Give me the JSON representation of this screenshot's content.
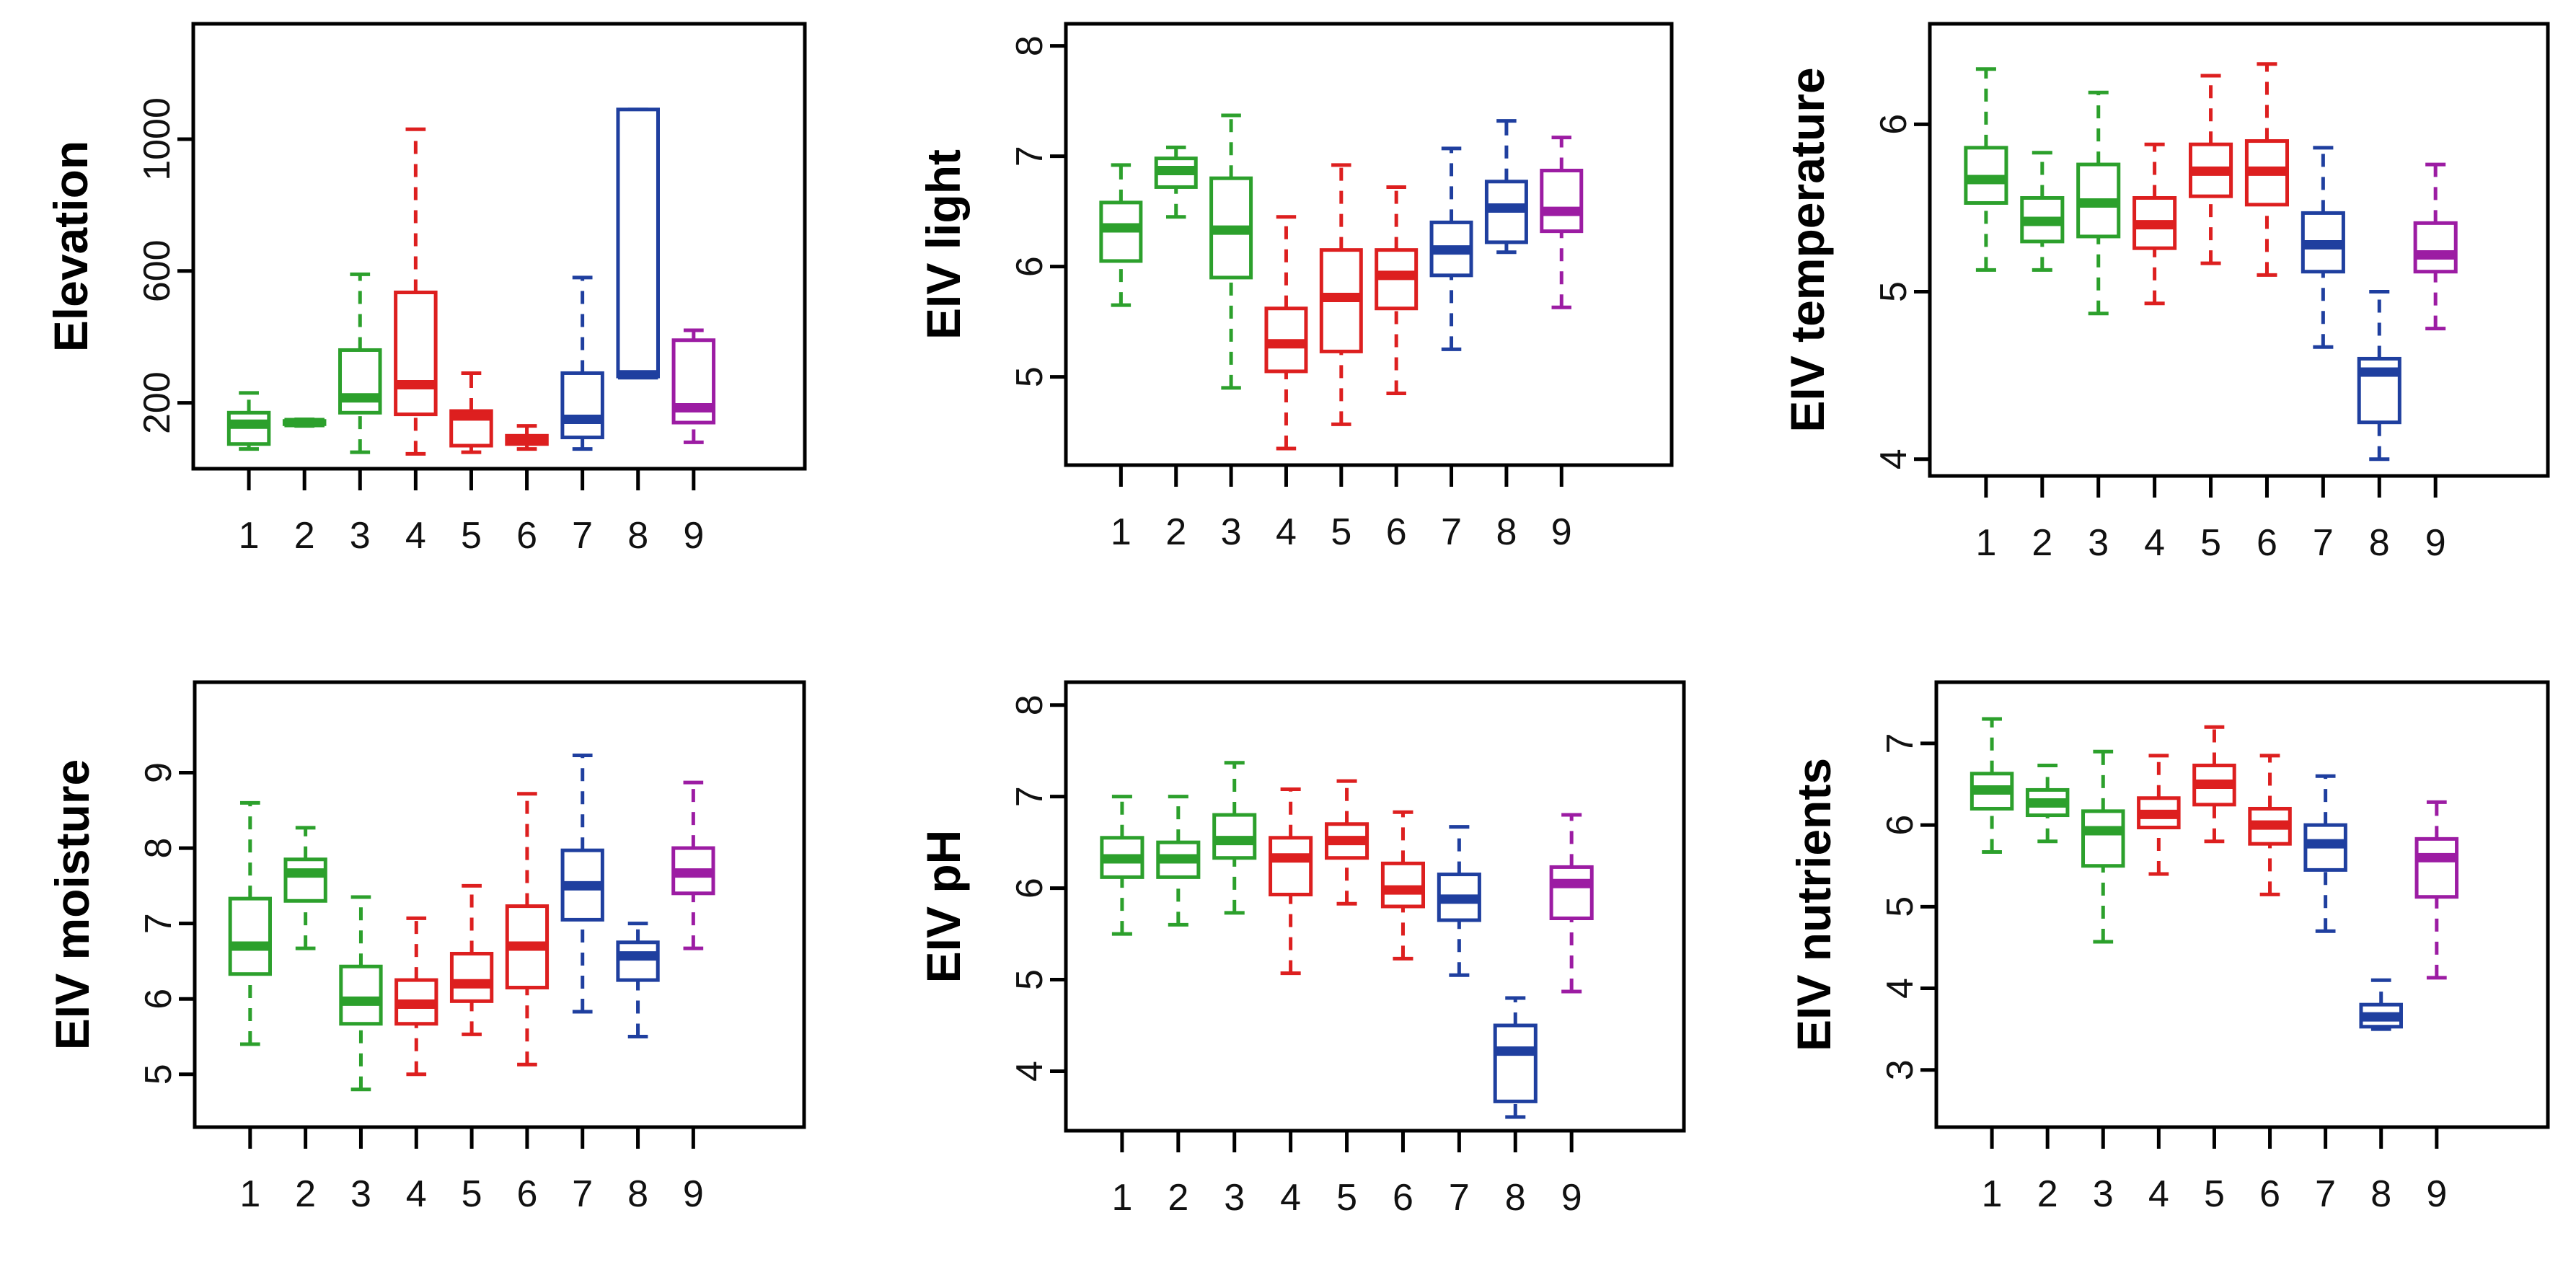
{
  "colors": {
    "green": "#2ca02c",
    "red": "#dd1f1f",
    "blue": "#1f3f9f",
    "purple": "#9c1ca3"
  },
  "group_colors": [
    "green",
    "green",
    "green",
    "red",
    "red",
    "red",
    "blue",
    "blue",
    "purple"
  ],
  "chart_data": [
    {
      "type": "box",
      "title": "",
      "ylabel": "Elevation",
      "xlabel": "",
      "categories": [
        "1",
        "2",
        "3",
        "4",
        "5",
        "6",
        "7",
        "8",
        "9"
      ],
      "ylim": [
        0,
        1350
      ],
      "yticks": [
        200,
        600,
        1000
      ],
      "ytick_labels": [
        "200",
        "600",
        "1000"
      ],
      "boxes": [
        {
          "min": 60,
          "q1": 75,
          "median": 135,
          "q3": 170,
          "max": 230
        },
        {
          "min": 130,
          "q1": 135,
          "median": 140,
          "q3": 145,
          "max": 150
        },
        {
          "min": 50,
          "q1": 170,
          "median": 215,
          "q3": 360,
          "max": 590
        },
        {
          "min": 45,
          "q1": 165,
          "median": 255,
          "q3": 535,
          "max": 1030
        },
        {
          "min": 50,
          "q1": 70,
          "median": 160,
          "q3": 175,
          "max": 290
        },
        {
          "min": 60,
          "q1": 75,
          "median": 90,
          "q3": 100,
          "max": 130
        },
        {
          "min": 60,
          "q1": 95,
          "median": 150,
          "q3": 290,
          "max": 580
        },
        {
          "min": 280,
          "q1": 280,
          "median": 285,
          "q3": 1090,
          "max": 1090
        },
        {
          "min": 80,
          "q1": 140,
          "median": 185,
          "q3": 390,
          "max": 420
        }
      ]
    },
    {
      "type": "box",
      "title": "",
      "ylabel": "EIV light",
      "xlabel": "",
      "categories": [
        "1",
        "2",
        "3",
        "4",
        "5",
        "6",
        "7",
        "8",
        "9"
      ],
      "ylim": [
        4.2,
        8.2
      ],
      "yticks": [
        5,
        6,
        7,
        8
      ],
      "ytick_labels": [
        "5",
        "6",
        "7",
        "8"
      ],
      "boxes": [
        {
          "min": 5.65,
          "q1": 6.05,
          "median": 6.35,
          "q3": 6.58,
          "max": 6.92
        },
        {
          "min": 6.45,
          "q1": 6.72,
          "median": 6.87,
          "q3": 6.98,
          "max": 7.08
        },
        {
          "min": 4.9,
          "q1": 5.9,
          "median": 6.33,
          "q3": 6.8,
          "max": 7.37
        },
        {
          "min": 4.35,
          "q1": 5.05,
          "median": 5.3,
          "q3": 5.62,
          "max": 6.45
        },
        {
          "min": 4.57,
          "q1": 5.23,
          "median": 5.72,
          "q3": 6.15,
          "max": 6.92
        },
        {
          "min": 4.85,
          "q1": 5.62,
          "median": 5.92,
          "q3": 6.15,
          "max": 6.72
        },
        {
          "min": 5.25,
          "q1": 5.92,
          "median": 6.15,
          "q3": 6.4,
          "max": 7.07
        },
        {
          "min": 6.13,
          "q1": 6.22,
          "median": 6.53,
          "q3": 6.77,
          "max": 7.32
        },
        {
          "min": 5.63,
          "q1": 6.32,
          "median": 6.5,
          "q3": 6.87,
          "max": 7.17
        }
      ]
    },
    {
      "type": "box",
      "title": "",
      "ylabel": "EIV temperature",
      "xlabel": "",
      "categories": [
        "1",
        "2",
        "3",
        "4",
        "5",
        "6",
        "7",
        "8",
        "9"
      ],
      "ylim": [
        3.9,
        6.6
      ],
      "yticks": [
        4,
        5,
        6
      ],
      "ytick_labels": [
        "4",
        "5",
        "6"
      ],
      "boxes": [
        {
          "min": 5.13,
          "q1": 5.53,
          "median": 5.67,
          "q3": 5.86,
          "max": 6.33
        },
        {
          "min": 5.13,
          "q1": 5.3,
          "median": 5.42,
          "q3": 5.56,
          "max": 5.83
        },
        {
          "min": 4.87,
          "q1": 5.33,
          "median": 5.53,
          "q3": 5.76,
          "max": 6.19
        },
        {
          "min": 4.93,
          "q1": 5.26,
          "median": 5.4,
          "q3": 5.56,
          "max": 5.88
        },
        {
          "min": 5.17,
          "q1": 5.57,
          "median": 5.72,
          "q3": 5.88,
          "max": 6.29
        },
        {
          "min": 5.1,
          "q1": 5.52,
          "median": 5.72,
          "q3": 5.9,
          "max": 6.36
        },
        {
          "min": 4.67,
          "q1": 5.12,
          "median": 5.28,
          "q3": 5.47,
          "max": 5.86
        },
        {
          "min": 4.0,
          "q1": 4.22,
          "median": 4.52,
          "q3": 4.6,
          "max": 5.0
        },
        {
          "min": 4.78,
          "q1": 5.12,
          "median": 5.22,
          "q3": 5.41,
          "max": 5.76
        }
      ]
    },
    {
      "type": "box",
      "title": "",
      "ylabel": "EIV moisture",
      "xlabel": "",
      "categories": [
        "1",
        "2",
        "3",
        "4",
        "5",
        "6",
        "7",
        "8",
        "9"
      ],
      "ylim": [
        4.3,
        10.2
      ],
      "yticks": [
        5,
        6,
        7,
        8,
        9
      ],
      "ytick_labels": [
        "5",
        "6",
        "7",
        "8",
        "9"
      ],
      "boxes": [
        {
          "min": 5.4,
          "q1": 6.33,
          "median": 6.7,
          "q3": 7.33,
          "max": 8.6
        },
        {
          "min": 6.67,
          "q1": 7.3,
          "median": 7.67,
          "q3": 7.85,
          "max": 8.27
        },
        {
          "min": 4.8,
          "q1": 5.67,
          "median": 5.97,
          "q3": 6.43,
          "max": 7.35
        },
        {
          "min": 5.0,
          "q1": 5.67,
          "median": 5.93,
          "q3": 6.25,
          "max": 7.07
        },
        {
          "min": 5.53,
          "q1": 5.97,
          "median": 6.2,
          "q3": 6.6,
          "max": 7.5
        },
        {
          "min": 5.13,
          "q1": 6.15,
          "median": 6.7,
          "q3": 7.23,
          "max": 8.72
        },
        {
          "min": 5.83,
          "q1": 7.05,
          "median": 7.5,
          "q3": 7.97,
          "max": 9.23
        },
        {
          "min": 5.5,
          "q1": 6.25,
          "median": 6.57,
          "q3": 6.75,
          "max": 7.0
        },
        {
          "min": 6.67,
          "q1": 7.4,
          "median": 7.67,
          "q3": 8.0,
          "max": 8.87
        }
      ]
    },
    {
      "type": "box",
      "title": "",
      "ylabel": "EIV pH",
      "xlabel": "",
      "categories": [
        "1",
        "2",
        "3",
        "4",
        "5",
        "6",
        "7",
        "8",
        "9"
      ],
      "ylim": [
        3.35,
        8.25
      ],
      "yticks": [
        4,
        5,
        6,
        7,
        8
      ],
      "ytick_labels": [
        "4",
        "5",
        "6",
        "7",
        "8"
      ],
      "boxes": [
        {
          "min": 5.5,
          "q1": 6.12,
          "median": 6.32,
          "q3": 6.55,
          "max": 7.0
        },
        {
          "min": 5.6,
          "q1": 6.12,
          "median": 6.32,
          "q3": 6.5,
          "max": 7.0
        },
        {
          "min": 5.73,
          "q1": 6.33,
          "median": 6.52,
          "q3": 6.8,
          "max": 7.37
        },
        {
          "min": 5.07,
          "q1": 5.93,
          "median": 6.33,
          "q3": 6.55,
          "max": 7.08
        },
        {
          "min": 5.83,
          "q1": 6.33,
          "median": 6.52,
          "q3": 6.7,
          "max": 7.17
        },
        {
          "min": 5.23,
          "q1": 5.8,
          "median": 5.98,
          "q3": 6.27,
          "max": 6.83
        },
        {
          "min": 5.05,
          "q1": 5.65,
          "median": 5.88,
          "q3": 6.15,
          "max": 6.67
        },
        {
          "min": 3.5,
          "q1": 3.67,
          "median": 4.22,
          "q3": 4.5,
          "max": 4.8
        },
        {
          "min": 4.87,
          "q1": 5.67,
          "median": 6.05,
          "q3": 6.23,
          "max": 6.8
        }
      ]
    },
    {
      "type": "box",
      "title": "",
      "ylabel": "EIV nutrients",
      "xlabel": "",
      "categories": [
        "1",
        "2",
        "3",
        "4",
        "5",
        "6",
        "7",
        "8",
        "9"
      ],
      "ylim": [
        2.3,
        7.75
      ],
      "yticks": [
        3,
        4,
        5,
        6,
        7
      ],
      "ytick_labels": [
        "3",
        "4",
        "5",
        "6",
        "7"
      ],
      "boxes": [
        {
          "min": 5.67,
          "q1": 6.2,
          "median": 6.43,
          "q3": 6.63,
          "max": 7.3
        },
        {
          "min": 5.8,
          "q1": 6.12,
          "median": 6.27,
          "q3": 6.43,
          "max": 6.73
        },
        {
          "min": 4.57,
          "q1": 5.5,
          "median": 5.93,
          "q3": 6.17,
          "max": 6.9
        },
        {
          "min": 5.4,
          "q1": 5.97,
          "median": 6.13,
          "q3": 6.33,
          "max": 6.85
        },
        {
          "min": 5.8,
          "q1": 6.25,
          "median": 6.5,
          "q3": 6.73,
          "max": 7.2
        },
        {
          "min": 5.15,
          "q1": 5.77,
          "median": 6.0,
          "q3": 6.2,
          "max": 6.85
        },
        {
          "min": 4.7,
          "q1": 5.45,
          "median": 5.77,
          "q3": 6.0,
          "max": 6.6
        },
        {
          "min": 3.5,
          "q1": 3.53,
          "median": 3.65,
          "q3": 3.8,
          "max": 4.1
        },
        {
          "min": 4.13,
          "q1": 5.12,
          "median": 5.6,
          "q3": 5.83,
          "max": 6.28
        }
      ]
    }
  ]
}
